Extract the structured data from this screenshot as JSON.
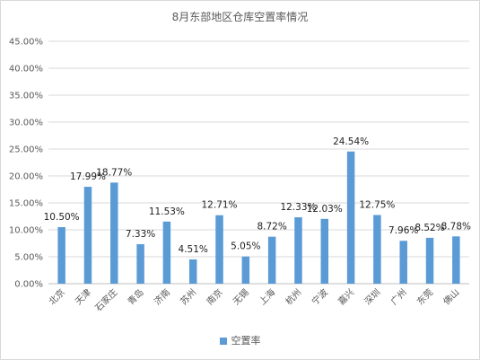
{
  "chart_data": {
    "type": "bar",
    "title": "8月东部地区仓库空置率情况",
    "categories": [
      "北京",
      "天津",
      "石家庄",
      "青岛",
      "济南",
      "苏州",
      "南京",
      "无锡",
      "上海",
      "杭州",
      "宁波",
      "嘉兴",
      "深圳",
      "广州",
      "东莞",
      "佛山"
    ],
    "series": [
      {
        "name": "空置率",
        "values": [
          10.5,
          17.99,
          18.77,
          7.33,
          11.53,
          4.51,
          12.71,
          5.05,
          8.72,
          12.33,
          12.03,
          24.54,
          12.75,
          7.96,
          8.52,
          8.78
        ],
        "labels": [
          "10.50%",
          "17.99%",
          "18.77%",
          "7.33%",
          "11.53%",
          "4.51%",
          "12.71%",
          "5.05%",
          "8.72%",
          "12.33%",
          "12.03%",
          "24.54%",
          "12.75%",
          "7.96%",
          "8.52%",
          "8.78%"
        ]
      }
    ],
    "ylim": [
      0,
      45
    ],
    "yticks": [
      0,
      5,
      10,
      15,
      20,
      25,
      30,
      35,
      40,
      45
    ],
    "ytick_labels": [
      "0.00%",
      "5.00%",
      "10.00%",
      "15.00%",
      "20.00%",
      "25.00%",
      "30.00%",
      "35.00%",
      "40.00%",
      "45.00%"
    ],
    "grid": true,
    "legend": "bottom",
    "colors": {
      "bar": "#5b9bd5",
      "grid": "#d9d9d9",
      "axis": "#bfbfbf",
      "text": "#595959"
    }
  }
}
